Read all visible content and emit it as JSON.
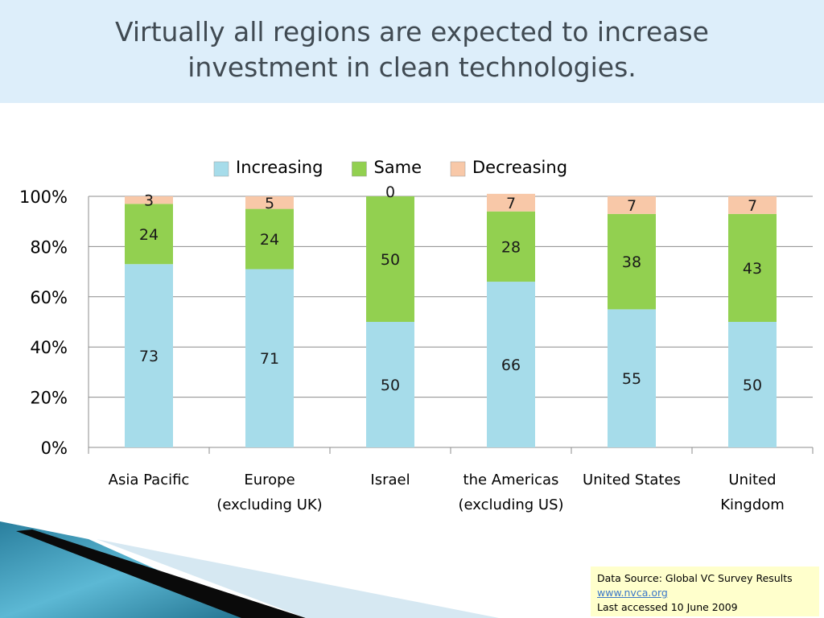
{
  "slide": {
    "title": "Virtually all regions are expected to increase\ninvestment in clean technologies."
  },
  "source_box": {
    "line1": "Data Source:  Global VC Survey Results",
    "link": "www.nvca.org",
    "line3": "Last accessed 10 June 2009"
  },
  "colors": {
    "increasing": "#a6dcea",
    "same": "#92d050",
    "decreasing": "#f8c8a8",
    "header_bg": "#ddeefa",
    "title_text": "#404a52",
    "source_bg": "#ffffcc"
  },
  "chart_data": {
    "type": "bar",
    "stacked": true,
    "percent": true,
    "categories": [
      [
        "Asia Pacific"
      ],
      [
        "Europe",
        "(excluding UK)"
      ],
      [
        "Israel"
      ],
      [
        "the Americas",
        "(excluding US)"
      ],
      [
        "United States"
      ],
      [
        "United",
        "Kingdom"
      ]
    ],
    "series": [
      {
        "name": "Increasing",
        "color": "#a6dcea",
        "values": [
          73,
          71,
          50,
          66,
          55,
          50
        ]
      },
      {
        "name": "Same",
        "color": "#92d050",
        "values": [
          24,
          24,
          50,
          28,
          38,
          43
        ]
      },
      {
        "name": "Decreasing",
        "color": "#f8c8a8",
        "values": [
          3,
          5,
          0,
          7,
          7,
          7
        ]
      }
    ],
    "yticks": [
      "0%",
      "20%",
      "40%",
      "60%",
      "80%",
      "100%"
    ],
    "ylim": [
      0,
      100
    ],
    "grid": true,
    "legend_position": "top"
  }
}
